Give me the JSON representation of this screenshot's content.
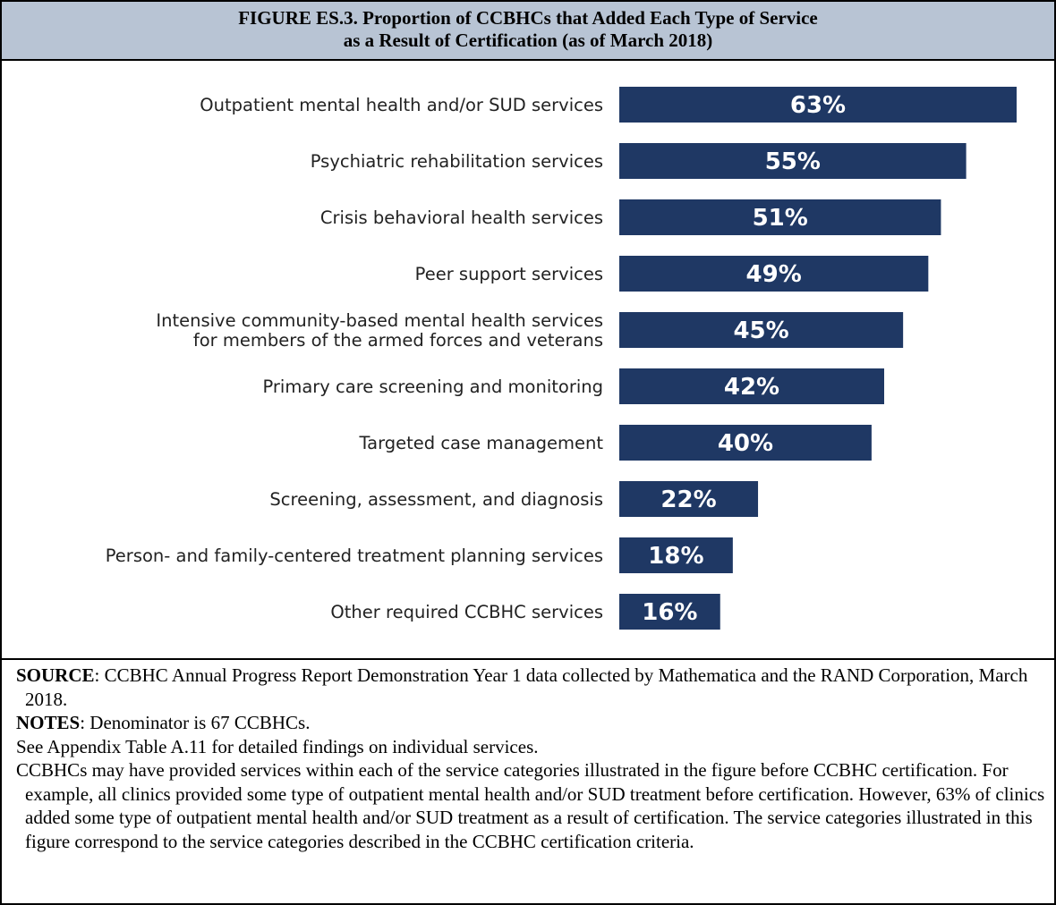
{
  "header": {
    "title_line1": "FIGURE ES.3. Proportion of CCBHCs that Added Each Type of Service",
    "title_line2": "as a Result of Certification (as of March 2018)"
  },
  "colors": {
    "bar": "#1f3864",
    "bar_label": "#ffffff",
    "header_bg": "#b8c4d4",
    "chart_bg": "#f2f2f2"
  },
  "chart_data": {
    "type": "bar",
    "orientation": "horizontal",
    "categories": [
      "Outpatient mental health and/or SUD services",
      "Psychiatric rehabilitation services",
      "Crisis behavioral health services",
      "Peer support services",
      "Intensive community-based mental health services for members of the armed forces and veterans",
      "Primary care screening and monitoring",
      "Targeted case management",
      "Screening, assessment, and diagnosis",
      "Person- and family-centered treatment planning services",
      "Other required CCBHC services"
    ],
    "category_lines": [
      [
        "Outpatient mental health and/or SUD services"
      ],
      [
        "Psychiatric rehabilitation services"
      ],
      [
        "Crisis behavioral health services"
      ],
      [
        "Peer support services"
      ],
      [
        "Intensive community-based mental health services",
        "for members of the armed forces and veterans"
      ],
      [
        "Primary care screening and monitoring"
      ],
      [
        "Targeted case management"
      ],
      [
        "Screening, assessment, and diagnosis"
      ],
      [
        "Person- and family-centered treatment planning services"
      ],
      [
        "Other required CCBHC services"
      ]
    ],
    "values": [
      63,
      55,
      51,
      49,
      45,
      42,
      40,
      22,
      18,
      16
    ],
    "data_labels": [
      "63%",
      "55%",
      "51%",
      "49%",
      "45%",
      "42%",
      "40%",
      "22%",
      "18%",
      "16%"
    ],
    "unit": "%",
    "xlim": [
      0,
      63
    ],
    "grid": false,
    "legend": "none"
  },
  "notes": {
    "source_label": "SOURCE",
    "source_text": ":  CCBHC Annual Progress Report Demonstration Year 1 data collected by Mathematica and the RAND Corporation, March 2018.",
    "notes_label": "NOTES",
    "notes_text": ":  Denominator is 67 CCBHCs.",
    "appendix_text": "See Appendix Table A.11 for detailed findings on individual services.",
    "explanation_text": "CCBHCs may have provided services within each of the service categories illustrated in the figure before CCBHC certification. For example, all clinics provided some type of outpatient mental health and/or SUD treatment before certification. However, 63% of clinics added some type of outpatient mental health and/or SUD treatment as a result of certification. The service categories illustrated in this figure correspond to the service categories described in the CCBHC certification criteria."
  }
}
